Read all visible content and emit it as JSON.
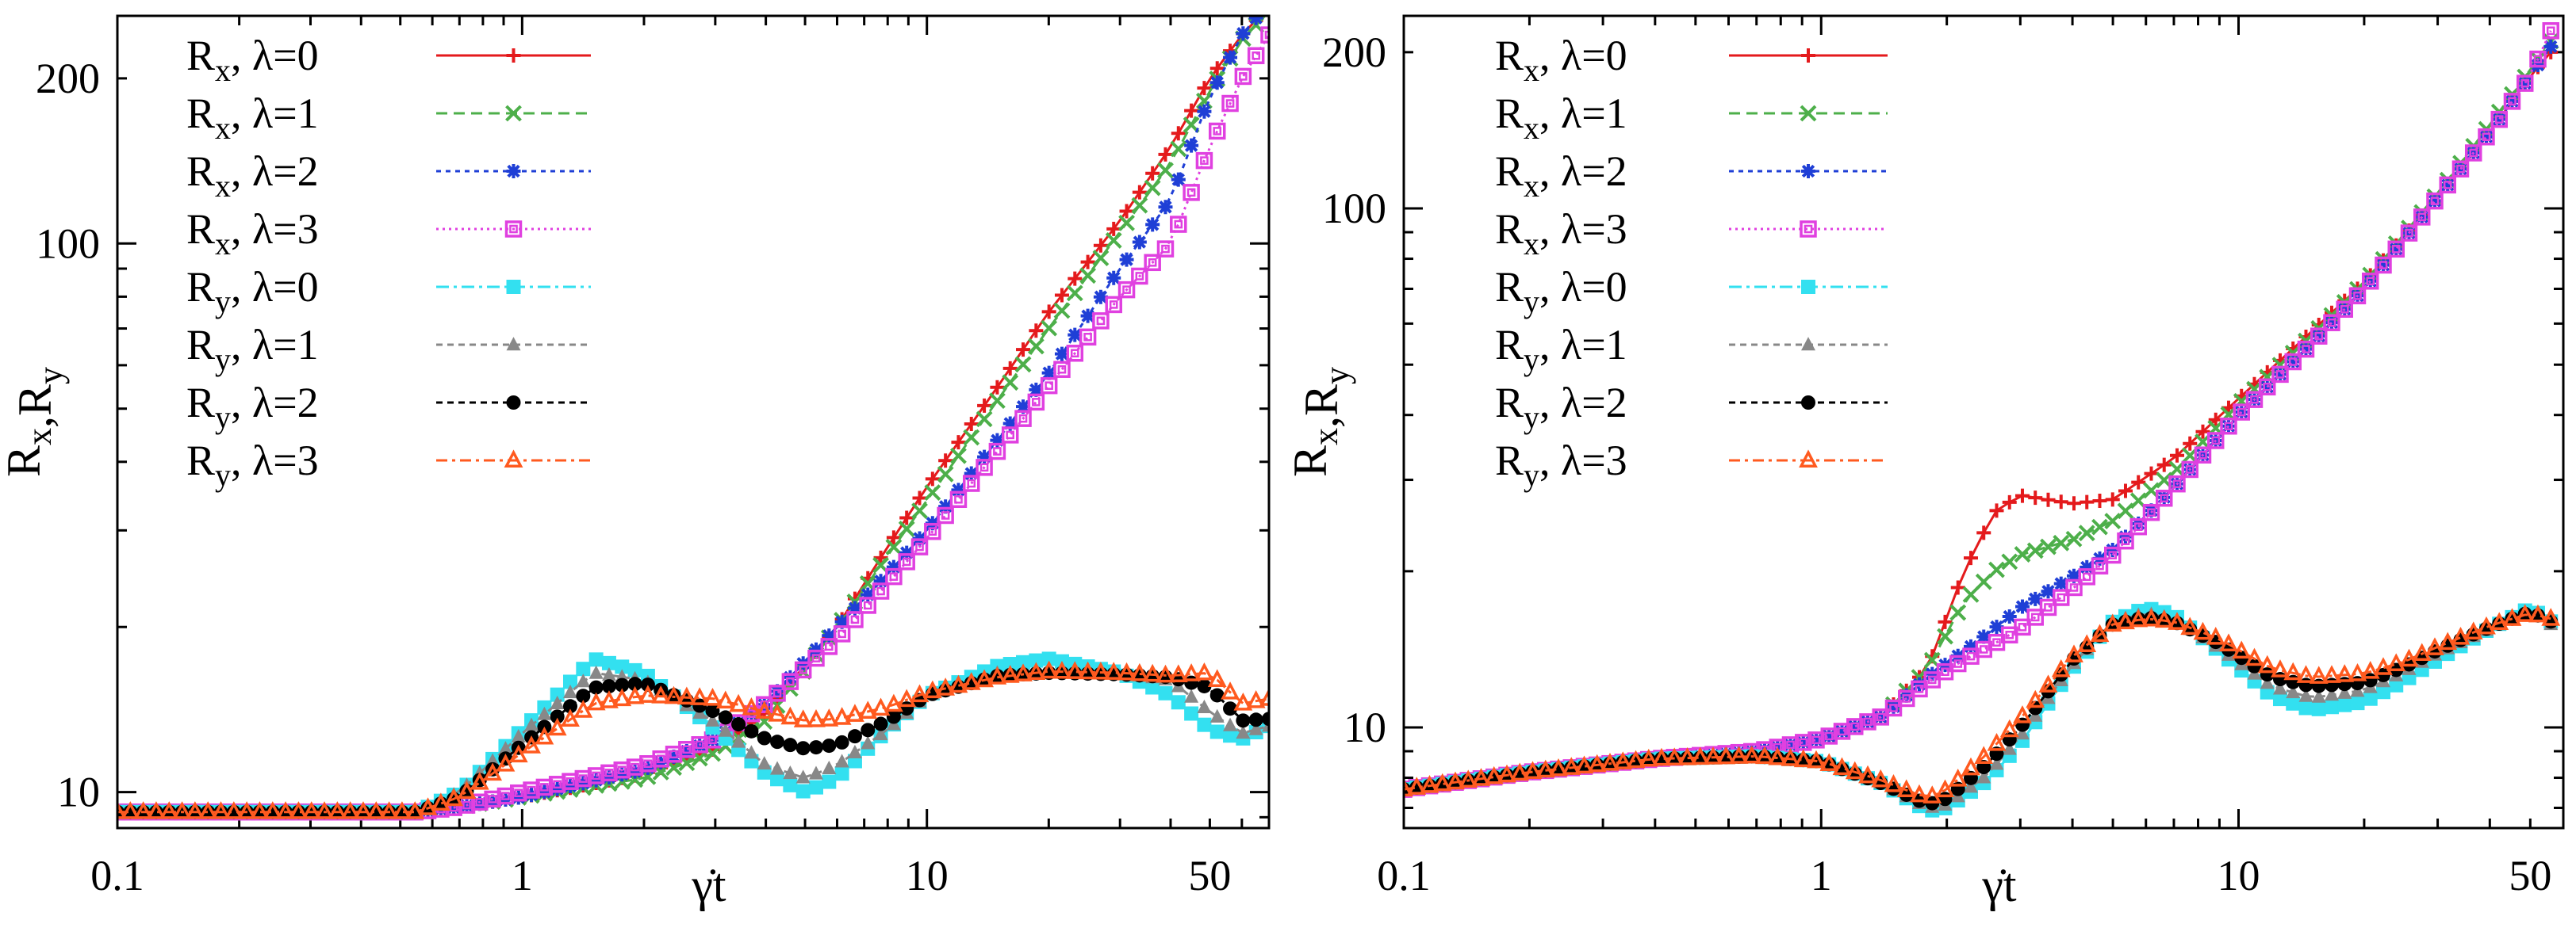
{
  "figure": {
    "panels": [
      {
        "xlabel": "γ̇t",
        "ylabel": "Rx,Ry",
        "xticks": [
          "0.1",
          "1",
          "10",
          "50"
        ],
        "yticks": [
          "10",
          "100",
          "200"
        ]
      },
      {
        "xlabel": "γ̇t",
        "ylabel": "Rx,Ry",
        "xticks": [
          "0.1",
          "1",
          "10",
          "50"
        ],
        "yticks": [
          "10",
          "100",
          "200"
        ]
      }
    ],
    "legend": [
      {
        "q": "R",
        "sub": "x",
        "lam": ", λ=0",
        "color": "#e41a1c",
        "marker": "plus",
        "dash": ""
      },
      {
        "q": "R",
        "sub": "x",
        "lam": ", λ=1",
        "color": "#4daf4a",
        "marker": "cross",
        "dash": "14,8"
      },
      {
        "q": "R",
        "sub": "x",
        "lam": ", λ=2",
        "color": "#1f3fd6",
        "marker": "star",
        "dash": "6,6"
      },
      {
        "q": "R",
        "sub": "x",
        "lam": ", λ=3",
        "color": "#e040e0",
        "marker": "opensquare",
        "dash": "3,5"
      },
      {
        "q": "R",
        "sub": "y",
        "lam": ", λ=0",
        "color": "#33e0f0",
        "marker": "filledsquare",
        "dash": "16,6,4,6"
      },
      {
        "q": "R",
        "sub": "y",
        "lam": ", λ=1",
        "color": "#888888",
        "marker": "triangle",
        "dash": "8,6"
      },
      {
        "q": "R",
        "sub": "y",
        "lam": ", λ=2",
        "color": "#000000",
        "marker": "circle",
        "dash": "8,6"
      },
      {
        "q": "R",
        "sub": "y",
        "lam": ", λ=3",
        "color": "#ff5a1f",
        "marker": "opentriangle",
        "dash": "14,6,4,6"
      }
    ]
  },
  "chart_data": [
    {
      "type": "line",
      "xscale": "log",
      "yscale": "log",
      "xlim": [
        0.1,
        70
      ],
      "ylim": [
        8.6,
        260
      ],
      "xlabel": "γ̇t",
      "ylabel": "Rx,Ry",
      "legend_position": "top-left",
      "series": [
        {
          "name": "Rx, λ=0",
          "x": [
            0.1,
            0.3,
            0.55,
            0.7,
            1,
            2,
            3,
            4,
            6,
            8,
            10,
            15,
            20,
            30,
            40,
            50,
            60,
            70
          ],
          "y": [
            9.2,
            9.2,
            9.2,
            9.4,
            9.8,
            10.8,
            12,
            14,
            20,
            28,
            36,
            55,
            75,
            110,
            150,
            200,
            240,
            270
          ]
        },
        {
          "name": "Rx, λ=1",
          "x": [
            0.1,
            0.3,
            0.55,
            0.7,
            1,
            2,
            3,
            4,
            6,
            8,
            10,
            15,
            20,
            30,
            40,
            50,
            60,
            70
          ],
          "y": [
            9.2,
            9.2,
            9.2,
            9.4,
            9.8,
            10.6,
            11.8,
            13.5,
            20,
            27,
            34,
            52,
            70,
            105,
            140,
            190,
            235,
            265
          ]
        },
        {
          "name": "Rx, λ=2",
          "x": [
            0.1,
            0.3,
            0.55,
            0.7,
            1,
            2,
            3,
            4,
            6,
            8,
            10,
            15,
            20,
            30,
            40,
            50,
            60,
            70
          ],
          "y": [
            9.2,
            9.2,
            9.2,
            9.4,
            9.8,
            11,
            12.5,
            14.5,
            20,
            25,
            30,
            44,
            58,
            90,
            120,
            185,
            240,
            275
          ]
        },
        {
          "name": "Rx, λ=3",
          "x": [
            0.1,
            0.3,
            0.55,
            0.7,
            1,
            2,
            3,
            4,
            6,
            8,
            10,
            15,
            20,
            30,
            40,
            50,
            60,
            70
          ],
          "y": [
            9.2,
            9.2,
            9.2,
            9.4,
            10,
            11.2,
            12.5,
            14.5,
            19,
            24,
            29,
            42,
            55,
            80,
            100,
            150,
            200,
            240
          ]
        },
        {
          "name": "Ry, λ=0",
          "x": [
            0.1,
            0.3,
            0.55,
            0.7,
            1,
            1.5,
            2,
            3,
            4,
            5,
            6,
            8,
            10,
            15,
            20,
            30,
            40,
            50,
            60,
            70
          ],
          "y": [
            9.2,
            9.2,
            9.2,
            10,
            13,
            17.5,
            16.5,
            13,
            10.8,
            10,
            10.6,
            13,
            15,
            17,
            17.5,
            16.5,
            15,
            13,
            12.5,
            13.2
          ]
        },
        {
          "name": "Ry, λ=1",
          "x": [
            0.1,
            0.3,
            0.55,
            0.7,
            1,
            1.5,
            2,
            3,
            4,
            5,
            6,
            8,
            10,
            15,
            20,
            30,
            40,
            50,
            60,
            70
          ],
          "y": [
            9.2,
            9.2,
            9.2,
            10,
            12.8,
            16.5,
            16,
            13.4,
            11.2,
            10.6,
            11.2,
            13,
            15,
            16.5,
            16.5,
            16.5,
            16,
            14,
            12.8,
            13.2
          ]
        },
        {
          "name": "Ry, λ=2",
          "x": [
            0.1,
            0.3,
            0.55,
            0.7,
            1,
            1.5,
            2,
            3,
            4,
            5,
            6,
            8,
            10,
            15,
            20,
            30,
            40,
            50,
            60,
            70
          ],
          "y": [
            9.2,
            9.2,
            9.2,
            9.8,
            12.2,
            15.5,
            15.8,
            14,
            12.5,
            12,
            12.2,
            13.5,
            15,
            16.3,
            16.5,
            16.4,
            16.2,
            15.5,
            13.5,
            13.6
          ]
        },
        {
          "name": "Ry, λ=3",
          "x": [
            0.1,
            0.3,
            0.55,
            0.7,
            1,
            1.5,
            2,
            3,
            4,
            5,
            6,
            8,
            10,
            15,
            20,
            30,
            40,
            50,
            60,
            70
          ],
          "y": [
            9.2,
            9.2,
            9.2,
            9.8,
            11.8,
            14.5,
            15,
            14.8,
            14,
            13.5,
            13.6,
            14.3,
            15.2,
            16.2,
            16.6,
            16.5,
            16.3,
            16.5,
            14.5,
            14.8
          ]
        }
      ]
    },
    {
      "type": "line",
      "xscale": "log",
      "yscale": "log",
      "xlim": [
        0.1,
        60
      ],
      "ylim": [
        6.4,
        235
      ],
      "xlabel": "γ̇t",
      "ylabel": "Rx,Ry",
      "legend_position": "top-left",
      "series": [
        {
          "name": "Rx, λ=0",
          "x": [
            0.1,
            0.2,
            0.4,
            0.7,
            1,
            1.4,
            1.8,
            2.2,
            2.6,
            3,
            4,
            5,
            7,
            10,
            15,
            20,
            30,
            40,
            50,
            56
          ],
          "y": [
            7.6,
            8.2,
            8.7,
            9,
            9.5,
            10.5,
            13,
            20,
            26,
            28,
            27,
            27.5,
            33,
            43,
            58,
            72,
            105,
            140,
            180,
            200
          ]
        },
        {
          "name": "Rx, λ=1",
          "x": [
            0.1,
            0.2,
            0.4,
            0.7,
            1,
            1.4,
            1.8,
            2.2,
            2.6,
            3,
            4,
            5,
            7,
            10,
            15,
            20,
            30,
            40,
            50,
            56
          ],
          "y": [
            7.6,
            8.2,
            8.7,
            9,
            9.5,
            10.5,
            13,
            17.5,
            20,
            21.5,
            23,
            25,
            31,
            42,
            57,
            72,
            107,
            145,
            185,
            210
          ]
        },
        {
          "name": "Rx, λ=2",
          "x": [
            0.1,
            0.2,
            0.4,
            0.7,
            1,
            1.4,
            1.8,
            2.2,
            2.6,
            3,
            4,
            5,
            7,
            10,
            15,
            20,
            30,
            40,
            50,
            56
          ],
          "y": [
            7.6,
            8.2,
            8.7,
            9,
            9.5,
            10.5,
            12.5,
            14,
            15.5,
            17,
            19.5,
            22,
            29,
            40,
            55,
            70,
            105,
            140,
            180,
            205
          ]
        },
        {
          "name": "Rx, λ=3",
          "x": [
            0.1,
            0.2,
            0.4,
            0.7,
            1,
            1.4,
            1.8,
            2.2,
            2.6,
            3,
            4,
            5,
            7,
            10,
            15,
            20,
            30,
            40,
            50,
            56
          ],
          "y": [
            7.6,
            8.2,
            8.7,
            9,
            9.5,
            10.5,
            12.2,
            13.5,
            14.5,
            15.5,
            18.5,
            21.5,
            29,
            40,
            55,
            70,
            105,
            140,
            180,
            220
          ]
        },
        {
          "name": "Ry, λ=0",
          "x": [
            0.1,
            0.2,
            0.4,
            0.7,
            1,
            1.4,
            1.8,
            2,
            2.5,
            3,
            4,
            5,
            6,
            7,
            9,
            12,
            15,
            20,
            25,
            30,
            40,
            50,
            56
          ],
          "y": [
            7.6,
            8.2,
            8.7,
            8.8,
            8.6,
            7.8,
            6.9,
            7,
            7.9,
            9.3,
            13,
            16,
            17,
            16.5,
            14,
            11.5,
            10.8,
            11.2,
            12.3,
            13.5,
            15.5,
            17,
            16
          ]
        },
        {
          "name": "Ry, λ=1",
          "x": [
            0.1,
            0.2,
            0.4,
            0.7,
            1,
            1.4,
            1.8,
            2,
            2.5,
            3,
            4,
            5,
            6,
            7,
            9,
            12,
            15,
            20,
            25,
            30,
            40,
            50,
            56
          ],
          "y": [
            7.6,
            8.2,
            8.7,
            8.8,
            8.6,
            7.8,
            7,
            7.1,
            8.1,
            9.6,
            13.2,
            16,
            16.6,
            16.2,
            14.2,
            12,
            11.4,
            11.8,
            12.8,
            13.9,
            15.5,
            16.8,
            15.8
          ]
        },
        {
          "name": "Ry, λ=2",
          "x": [
            0.1,
            0.2,
            0.4,
            0.7,
            1,
            1.4,
            1.8,
            2,
            2.5,
            3,
            4,
            5,
            6,
            7,
            9,
            12,
            15,
            20,
            25,
            30,
            40,
            50,
            56
          ],
          "y": [
            7.6,
            8.2,
            8.7,
            8.8,
            8.6,
            7.8,
            7.1,
            7.3,
            8.5,
            10,
            13.5,
            15.8,
            16.3,
            16,
            14.5,
            12.5,
            12,
            12.2,
            13.1,
            14.1,
            15.6,
            16.7,
            16
          ]
        },
        {
          "name": "Ry, λ=3",
          "x": [
            0.1,
            0.2,
            0.4,
            0.7,
            1,
            1.4,
            1.8,
            2,
            2.5,
            3,
            4,
            5,
            6,
            7,
            9,
            12,
            15,
            20,
            25,
            30,
            40,
            50,
            56
          ],
          "y": [
            7.6,
            8.2,
            8.7,
            8.8,
            8.6,
            7.9,
            7.3,
            7.6,
            8.9,
            10.4,
            13.7,
            15.8,
            16.2,
            16,
            14.8,
            13,
            12.5,
            12.7,
            13.4,
            14.3,
            15.7,
            16.6,
            16.2
          ]
        }
      ]
    }
  ]
}
